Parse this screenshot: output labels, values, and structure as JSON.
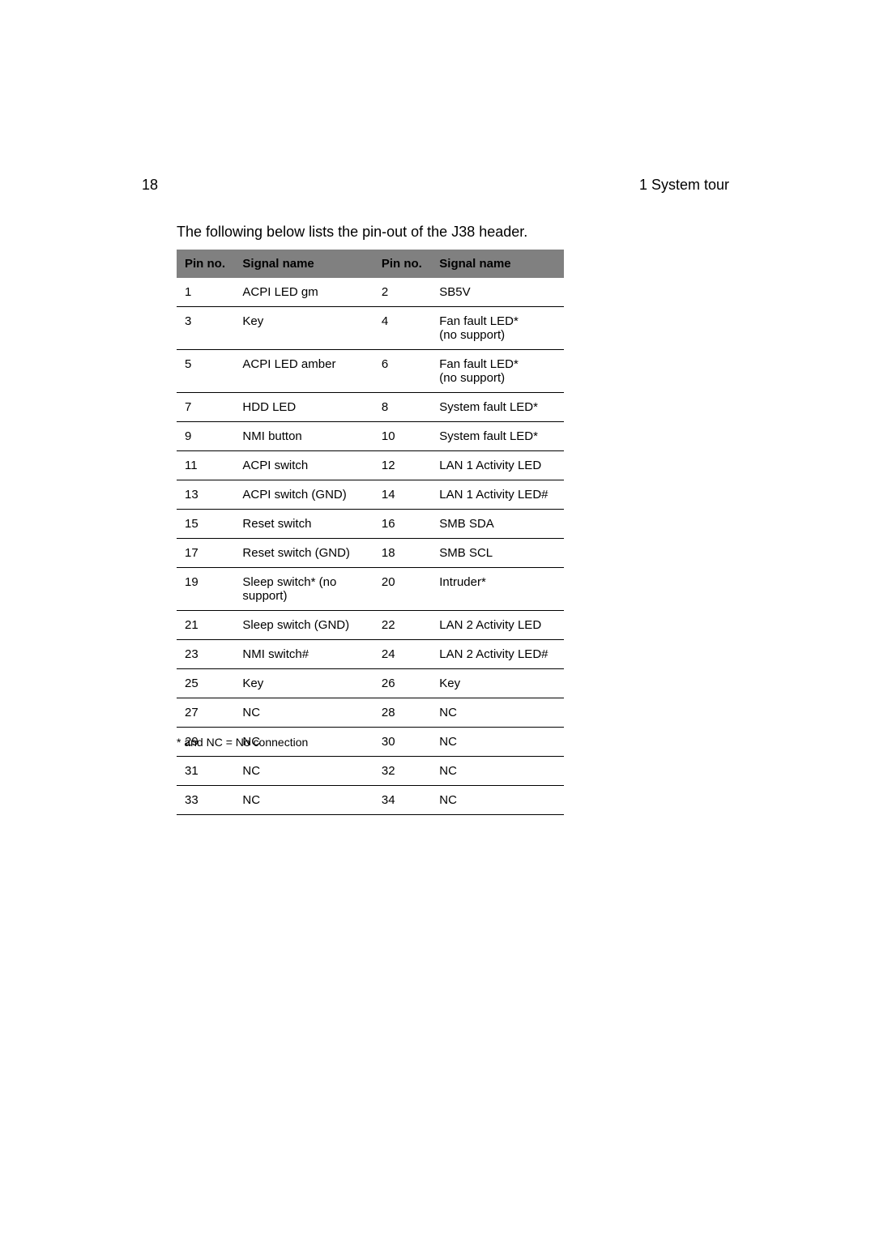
{
  "page": {
    "number": "18",
    "section": "1 System tour",
    "intro": "The following below lists the pin-out of the J38 header.",
    "footnote": "* and NC = No connection"
  },
  "table": {
    "background_color": "#ffffff",
    "header_bg": "#808080",
    "border_color": "#000000",
    "font_size": 15,
    "headers": {
      "pin_left": "Pin no.",
      "name_left": "Signal name",
      "pin_right": "Pin no.",
      "name_right": "Signal name"
    },
    "rows": [
      {
        "pl": "1",
        "nl": "ACPI LED gm",
        "pr": "2",
        "nr": "SB5V"
      },
      {
        "pl": "3",
        "nl": "Key",
        "pr": "4",
        "nr": "Fan fault LED*\n(no support)"
      },
      {
        "pl": "5",
        "nl": "ACPI LED amber",
        "pr": "6",
        "nr": "Fan fault LED*\n(no support)"
      },
      {
        "pl": "7",
        "nl": "HDD LED",
        "pr": "8",
        "nr": "System fault LED*"
      },
      {
        "pl": "9",
        "nl": "NMI button",
        "pr": "10",
        "nr": "System fault LED*"
      },
      {
        "pl": "11",
        "nl": "ACPI switch",
        "pr": "12",
        "nr": "LAN 1 Activity LED"
      },
      {
        "pl": "13",
        "nl": "ACPI switch (GND)",
        "pr": "14",
        "nr": "LAN 1 Activity LED#"
      },
      {
        "pl": "15",
        "nl": "Reset switch",
        "pr": "16",
        "nr": "SMB SDA"
      },
      {
        "pl": "17",
        "nl": "Reset switch (GND)",
        "pr": "18",
        "nr": "SMB SCL"
      },
      {
        "pl": "19",
        "nl": "Sleep switch* (no support)",
        "pr": "20",
        "nr": "Intruder*"
      },
      {
        "pl": "21",
        "nl": "Sleep switch (GND)",
        "pr": "22",
        "nr": "LAN 2 Activity LED"
      },
      {
        "pl": "23",
        "nl": "NMI switch#",
        "pr": "24",
        "nr": "LAN 2 Activity LED#"
      },
      {
        "pl": "25",
        "nl": "Key",
        "pr": "26",
        "nr": "Key"
      },
      {
        "pl": "27",
        "nl": "NC",
        "pr": "28",
        "nr": "NC"
      },
      {
        "pl": "29",
        "nl": "NC",
        "pr": "30",
        "nr": "NC"
      },
      {
        "pl": "31",
        "nl": "NC",
        "pr": "32",
        "nr": "NC"
      },
      {
        "pl": "33",
        "nl": "NC",
        "pr": "34",
        "nr": "NC"
      }
    ]
  }
}
